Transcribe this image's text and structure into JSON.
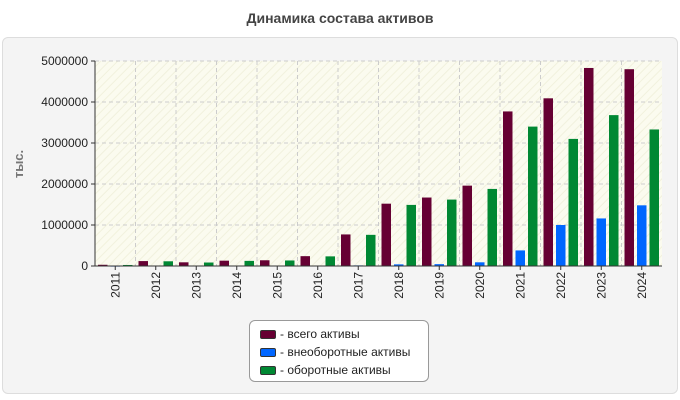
{
  "chart_data": {
    "type": "bar",
    "title": "Динамика состава активов",
    "ylabel": "тыс.",
    "xlabel": "",
    "ylim": [
      0,
      5000000
    ],
    "yticks": [
      0,
      1000000,
      2000000,
      3000000,
      4000000,
      5000000
    ],
    "categories": [
      "2011",
      "2012",
      "2013",
      "2014",
      "2015",
      "2016",
      "2017",
      "2018",
      "2019",
      "2020",
      "2021",
      "2022",
      "2023",
      "2024"
    ],
    "series": [
      {
        "name": "- всего активы",
        "color": "#660033",
        "values": [
          30000,
          120000,
          90000,
          130000,
          140000,
          240000,
          770000,
          1520000,
          1670000,
          1960000,
          3770000,
          4090000,
          4830000,
          4800000
        ]
      },
      {
        "name": "- внеоборотные активы",
        "color": "#0066ff",
        "values": [
          5000,
          8000,
          8000,
          8000,
          8000,
          10000,
          15000,
          40000,
          45000,
          90000,
          380000,
          1000000,
          1160000,
          1480000
        ]
      },
      {
        "name": "- оборотные активы",
        "color": "#008833",
        "values": [
          25000,
          115000,
          85000,
          125000,
          135000,
          235000,
          760000,
          1490000,
          1620000,
          1880000,
          3400000,
          3100000,
          3680000,
          3330000
        ]
      }
    ],
    "grid": true,
    "legend": "bottom-center"
  }
}
